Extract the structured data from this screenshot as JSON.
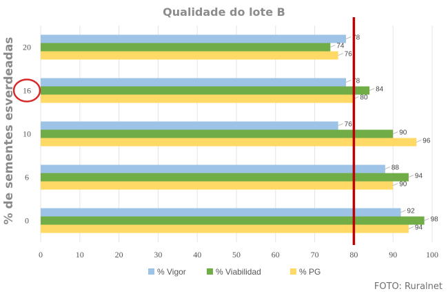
{
  "chart_data": {
    "type": "bar",
    "orientation": "horizontal",
    "title": "Qualidade do lote B",
    "ylabel": "% de sementes esverdeadas",
    "xlabel": "",
    "categories": [
      "20",
      "16",
      "10",
      "6",
      "0"
    ],
    "series": [
      {
        "name": "% Vigor",
        "values": [
          78,
          78,
          76,
          88,
          92
        ],
        "color": "#9dc3e6"
      },
      {
        "name": "% Viabilidad",
        "values": [
          74,
          84,
          90,
          94,
          98
        ],
        "color": "#70ad47"
      },
      {
        "name": "% PG",
        "values": [
          76,
          80,
          96,
          90,
          94
        ],
        "color": "#ffd966"
      }
    ],
    "xlim": [
      0,
      100
    ],
    "xticks": [
      0,
      10,
      20,
      30,
      40,
      50,
      60,
      70,
      80,
      90,
      100
    ],
    "grid": true,
    "legend_position": "bottom",
    "reference_line": {
      "value": 80,
      "color": "#c00000"
    },
    "highlighted_category": "16",
    "highlight_color": "#d62a2a"
  },
  "credit": "FOTO: Ruralnet"
}
